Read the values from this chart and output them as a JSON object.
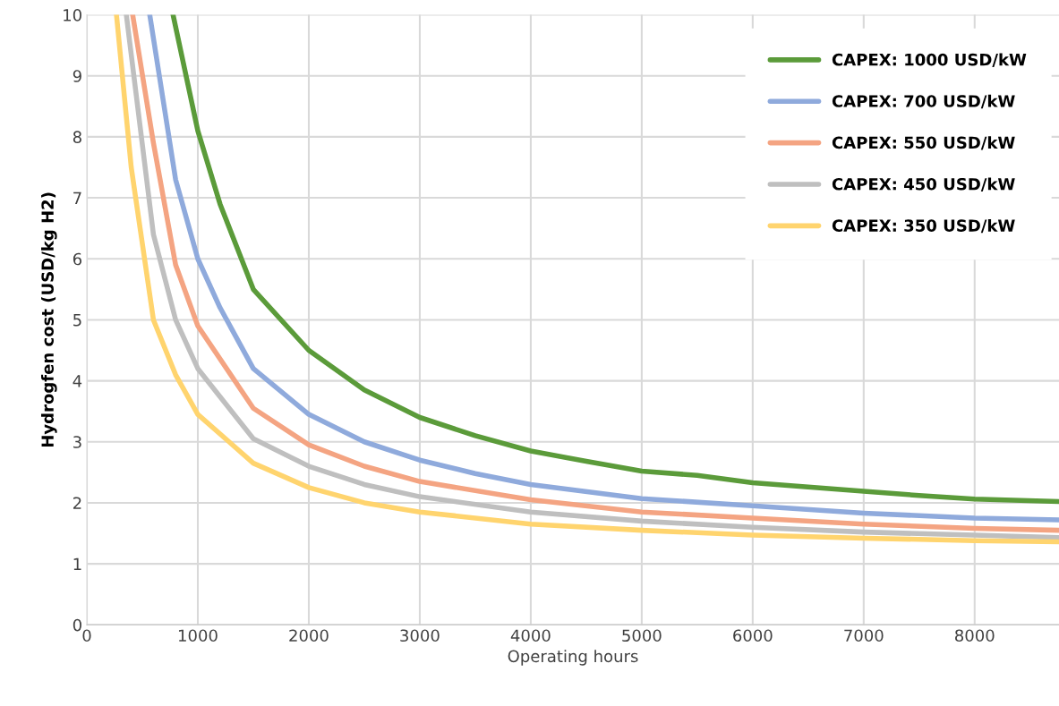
{
  "chart_data": {
    "type": "line",
    "xlabel": "Operating hours",
    "ylabel": "Hydrogfen cost (USD/kg H2)",
    "xlim": [
      0,
      8760
    ],
    "xticks": [
      0,
      1000,
      2000,
      3000,
      4000,
      5000,
      6000,
      7000,
      8000
    ],
    "ylim": [
      0,
      10
    ],
    "yticks": [
      0,
      1,
      2,
      3,
      4,
      5,
      6,
      7,
      8,
      9,
      10
    ],
    "grid": true,
    "legend": "top right",
    "marker": "none",
    "line_style": "solid",
    "series": [
      {
        "name": "CAPEX: 1000 USD/kW",
        "color": "#5b9b3a",
        "x": [
          777,
          1000,
          1200,
          1500,
          2000,
          2500,
          3000,
          3500,
          4000,
          4500,
          5000,
          5500,
          6000,
          6500,
          7000,
          7500,
          8000,
          8760
        ],
        "values": [
          10,
          8.1,
          6.9,
          5.5,
          4.5,
          3.85,
          3.4,
          3.1,
          2.85,
          2.68,
          2.52,
          2.45,
          2.33,
          2.26,
          2.19,
          2.12,
          2.06,
          2.02
        ]
      },
      {
        "name": "CAPEX: 700 USD/kW",
        "color": "#8faadc",
        "x": [
          567,
          800,
          1000,
          1200,
          1500,
          2000,
          2500,
          3000,
          3500,
          4000,
          5000,
          6000,
          7000,
          8000,
          8760
        ],
        "values": [
          10,
          7.3,
          6.0,
          5.2,
          4.2,
          3.45,
          3.0,
          2.7,
          2.48,
          2.3,
          2.07,
          1.95,
          1.83,
          1.75,
          1.72
        ]
      },
      {
        "name": "CAPEX: 550 USD/kW",
        "color": "#f4a482",
        "x": [
          413,
          600,
          800,
          1000,
          1500,
          2000,
          2500,
          3000,
          4000,
          5000,
          6000,
          7000,
          8000,
          8760
        ],
        "values": [
          10,
          7.9,
          5.9,
          4.9,
          3.55,
          2.95,
          2.6,
          2.35,
          2.05,
          1.85,
          1.75,
          1.65,
          1.58,
          1.55
        ]
      },
      {
        "name": "CAPEX: 450 USD/kW",
        "color": "#bfbfbf",
        "x": [
          356,
          600,
          800,
          1000,
          1500,
          2000,
          2500,
          3000,
          4000,
          5000,
          6000,
          7000,
          8000,
          8760
        ],
        "values": [
          10,
          6.4,
          5.0,
          4.2,
          3.05,
          2.6,
          2.3,
          2.1,
          1.85,
          1.7,
          1.6,
          1.52,
          1.47,
          1.43
        ]
      },
      {
        "name": "CAPEX: 350 USD/kW",
        "color": "#ffd46e",
        "x": [
          267,
          400,
          600,
          800,
          1000,
          1500,
          2000,
          2500,
          3000,
          4000,
          5000,
          6000,
          7000,
          8000,
          8760
        ],
        "values": [
          10,
          7.5,
          5.0,
          4.1,
          3.45,
          2.65,
          2.25,
          2.0,
          1.85,
          1.65,
          1.55,
          1.47,
          1.42,
          1.38,
          1.36
        ]
      }
    ]
  }
}
